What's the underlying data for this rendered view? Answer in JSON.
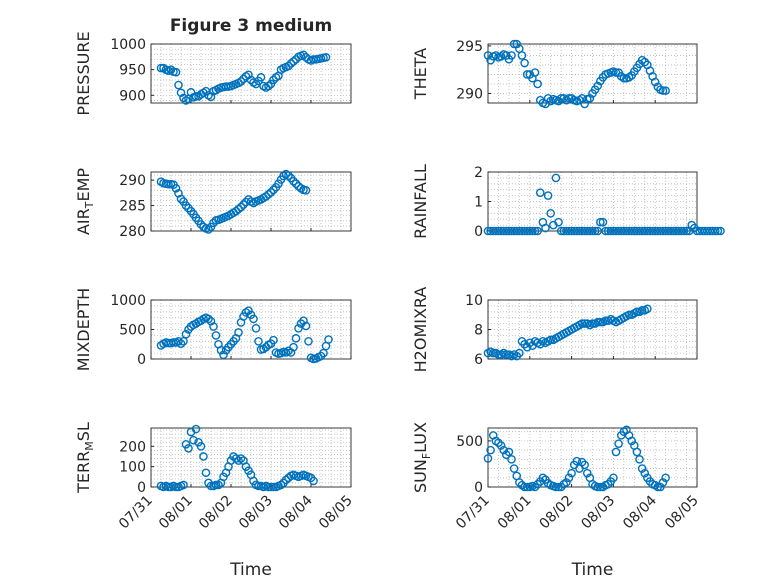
{
  "figure": {
    "title": "Figure 3 medium"
  },
  "style": {
    "marker_color": "#0072BD",
    "axes_color": "#262626",
    "grid_color": "#b8b8b8"
  },
  "chart_data": [
    {
      "type": "scatter",
      "panel": "left-1",
      "ylabel": "PRESSURE",
      "ylim": [
        885,
        1000
      ],
      "yticks": [
        900,
        950,
        1000
      ],
      "xlim": [
        "07/31",
        "08/05"
      ],
      "xticklabels": [],
      "grid": true,
      "x_start": "07/31 06:00",
      "x_step_hours": 1.5,
      "values": [
        953,
        953,
        950,
        948,
        950,
        946,
        945,
        920,
        905,
        895,
        890,
        893,
        906,
        896,
        898,
        898,
        902,
        905,
        908,
        900,
        897,
        908,
        910,
        913,
        915,
        916,
        917,
        917,
        918,
        920,
        922,
        924,
        927,
        932,
        937,
        940,
        930,
        925,
        922,
        928,
        935,
        918,
        915,
        918,
        922,
        930,
        935,
        938,
        950,
        953,
        955,
        957,
        962,
        966,
        970,
        975,
        977,
        979,
        974,
        970,
        968,
        970,
        970,
        971,
        972,
        973,
        974
      ]
    },
    {
      "type": "scatter",
      "panel": "right-1",
      "ylabel": "THETA",
      "ylim": [
        289,
        295.2
      ],
      "yticks": [
        290,
        295
      ],
      "xlim": [
        "07/31",
        "08/05"
      ],
      "xticklabels": [],
      "grid": true,
      "x_start": "07/31 00:00",
      "x_step_hours": 1.5,
      "values": [
        294.0,
        293.5,
        293.9,
        294.0,
        293.8,
        293.9,
        294.1,
        294.0,
        293.6,
        294.0,
        295.2,
        295.2,
        294.7,
        294.0,
        293.2,
        292.0,
        292.0,
        291.6,
        292.2,
        291.0,
        289.3,
        289.0,
        288.9,
        289.5,
        289.2,
        289.4,
        289.3,
        289.2,
        289.5,
        289.5,
        289.3,
        289.5,
        289.5,
        289.3,
        289.2,
        289.3,
        289.5,
        288.9,
        289.4,
        289.5,
        290.0,
        290.4,
        290.8,
        291.3,
        291.7,
        292.0,
        292.1,
        292.2,
        292.3,
        292.2,
        292.2,
        291.8,
        291.6,
        291.6,
        291.7,
        291.9,
        292.3,
        292.7,
        293.1,
        293.5,
        293.3,
        293.0,
        292.4,
        291.8,
        291.2,
        290.7,
        290.4,
        290.3,
        290.3
      ]
    },
    {
      "type": "scatter",
      "panel": "left-2",
      "ylabel": "AIR_TEMP",
      "ylim": [
        280,
        291.6
      ],
      "yticks": [
        280,
        285,
        290
      ],
      "xlim": [
        "07/31",
        "08/05"
      ],
      "xticklabels": [],
      "grid": true,
      "x_start": "07/31 06:00",
      "x_step_hours": 1.5,
      "values": [
        289.7,
        289.4,
        289.3,
        289.2,
        289.2,
        289.1,
        288.4,
        287.4,
        286.3,
        285.8,
        285.0,
        284.5,
        283.9,
        283.3,
        282.6,
        282.0,
        281.3,
        280.8,
        280.5,
        280.3,
        280.8,
        281.6,
        282.1,
        282.2,
        282.4,
        282.6,
        282.8,
        283.0,
        283.3,
        283.6,
        283.9,
        284.3,
        284.7,
        285.2,
        285.7,
        286.2,
        285.8,
        285.5,
        285.8,
        286.0,
        286.2,
        286.5,
        286.8,
        287.2,
        287.6,
        288.1,
        288.6,
        289.3,
        290.1,
        290.8,
        291.2,
        290.9,
        290.4,
        289.8,
        289.3,
        288.8,
        288.4,
        288.1,
        288.0
      ]
    },
    {
      "type": "scatter",
      "panel": "right-2",
      "ylabel": "RAINFALL",
      "ylim": [
        0,
        2
      ],
      "yticks": [
        0,
        1,
        2
      ],
      "xlim": [
        "07/31",
        "08/05"
      ],
      "xticklabels": [],
      "grid": true,
      "x_start": "07/31 00:00",
      "x_step_hours": 1.5,
      "values": [
        0,
        0,
        0,
        0,
        0,
        0,
        0,
        0,
        0,
        0,
        0,
        0,
        0,
        0,
        0,
        0,
        0,
        0,
        0,
        0,
        1.3,
        0.3,
        0.1,
        1.2,
        0.6,
        0.2,
        1.8,
        0.3,
        0,
        0,
        0,
        0,
        0,
        0,
        0,
        0,
        0,
        0,
        0,
        0,
        0,
        0,
        0,
        0.3,
        0.3,
        0,
        0,
        0,
        0,
        0,
        0,
        0,
        0,
        0,
        0,
        0,
        0,
        0,
        0,
        0,
        0,
        0,
        0,
        0,
        0,
        0,
        0,
        0,
        0,
        0,
        0,
        0,
        0,
        0,
        0,
        0,
        0,
        0,
        0.2,
        0.1,
        0,
        0,
        0,
        0,
        0,
        0,
        0,
        0,
        0,
        0
      ]
    },
    {
      "type": "scatter",
      "panel": "left-3",
      "ylabel": "MIXDEPTH",
      "ylim": [
        0,
        1000
      ],
      "yticks": [
        0,
        500,
        1000
      ],
      "xlim": [
        "07/31",
        "08/05"
      ],
      "xticklabels": [],
      "grid": true,
      "x_start": "07/31 06:00",
      "x_step_hours": 1.5,
      "values": [
        230,
        260,
        280,
        270,
        270,
        280,
        280,
        300,
        260,
        300,
        420,
        500,
        550,
        580,
        600,
        630,
        650,
        680,
        700,
        680,
        640,
        550,
        400,
        250,
        150,
        70,
        150,
        200,
        250,
        300,
        350,
        450,
        620,
        720,
        790,
        820,
        750,
        680,
        520,
        300,
        160,
        170,
        200,
        240,
        260,
        320,
        110,
        90,
        100,
        120,
        110,
        140,
        110,
        200,
        350,
        520,
        600,
        650,
        560,
        300,
        20,
        0,
        10,
        30,
        50,
        100,
        220,
        330
      ]
    },
    {
      "type": "scatter",
      "panel": "right-3",
      "ylabel": "H2OMIXRA",
      "ylim": [
        6,
        10
      ],
      "yticks": [
        6,
        8,
        10
      ],
      "xlim": [
        "07/31",
        "08/05"
      ],
      "xticklabels": [],
      "grid": true,
      "x_start": "07/31 00:00",
      "x_step_hours": 1.5,
      "values": [
        6.4,
        6.5,
        6.4,
        6.4,
        6.3,
        6.3,
        6.4,
        6.3,
        6.3,
        6.2,
        6.3,
        6.2,
        6.4,
        7.2,
        7.0,
        6.8,
        7.1,
        6.9,
        7.2,
        7.1,
        7.0,
        7.2,
        7.1,
        7.2,
        7.3,
        7.3,
        7.4,
        7.5,
        7.6,
        7.7,
        7.8,
        7.9,
        8.0,
        8.1,
        8.2,
        8.3,
        8.4,
        8.4,
        8.4,
        8.3,
        8.4,
        8.4,
        8.5,
        8.5,
        8.5,
        8.6,
        8.6,
        8.7,
        8.6,
        8.5,
        8.6,
        8.7,
        8.8,
        8.9,
        9.0,
        9.0,
        9.1,
        9.2,
        9.2,
        9.3,
        9.3,
        9.4
      ]
    },
    {
      "type": "scatter",
      "panel": "left-4",
      "ylabel": "TERR_MSL",
      "ylim": [
        0,
        290
      ],
      "yticks": [
        0,
        100,
        200
      ],
      "xlim": [
        "07/31",
        "08/05"
      ],
      "xticks": [
        "07/31",
        "08/01",
        "08/02",
        "08/03",
        "08/04",
        "08/05"
      ],
      "xlabel": "Time",
      "grid": true,
      "x_start": "07/31 06:00",
      "x_step_hours": 1.5,
      "values": [
        5,
        0,
        5,
        0,
        0,
        5,
        0,
        0,
        5,
        10,
        210,
        190,
        270,
        230,
        285,
        220,
        200,
        150,
        70,
        20,
        5,
        5,
        10,
        10,
        20,
        50,
        70,
        100,
        130,
        150,
        140,
        130,
        140,
        130,
        100,
        80,
        60,
        30,
        10,
        5,
        5,
        0,
        5,
        0,
        0,
        0,
        0,
        5,
        10,
        20,
        35,
        45,
        55,
        60,
        55,
        50,
        55,
        60,
        55,
        50,
        45,
        30
      ]
    },
    {
      "type": "scatter",
      "panel": "right-4",
      "ylabel": "SUN_FLUX",
      "ylim": [
        0,
        640
      ],
      "yticks": [
        0,
        500
      ],
      "xlim": [
        "07/31",
        "08/05"
      ],
      "xticks": [
        "07/31",
        "08/01",
        "08/02",
        "08/03",
        "08/04",
        "08/05"
      ],
      "xlabel": "Time",
      "grid": true,
      "x_start": "07/31 00:00",
      "x_step_hours": 1.5,
      "values": [
        310,
        400,
        560,
        500,
        480,
        450,
        400,
        350,
        380,
        300,
        200,
        120,
        50,
        20,
        0,
        0,
        0,
        10,
        0,
        30,
        60,
        100,
        80,
        40,
        20,
        10,
        0,
        0,
        0,
        30,
        50,
        100,
        150,
        240,
        280,
        200,
        270,
        240,
        150,
        100,
        30,
        10,
        0,
        0,
        0,
        20,
        30,
        60,
        100,
        380,
        470,
        560,
        600,
        620,
        560,
        500,
        450,
        380,
        300,
        200,
        150,
        100,
        60,
        30,
        20,
        0,
        0,
        50,
        100
      ]
    }
  ]
}
